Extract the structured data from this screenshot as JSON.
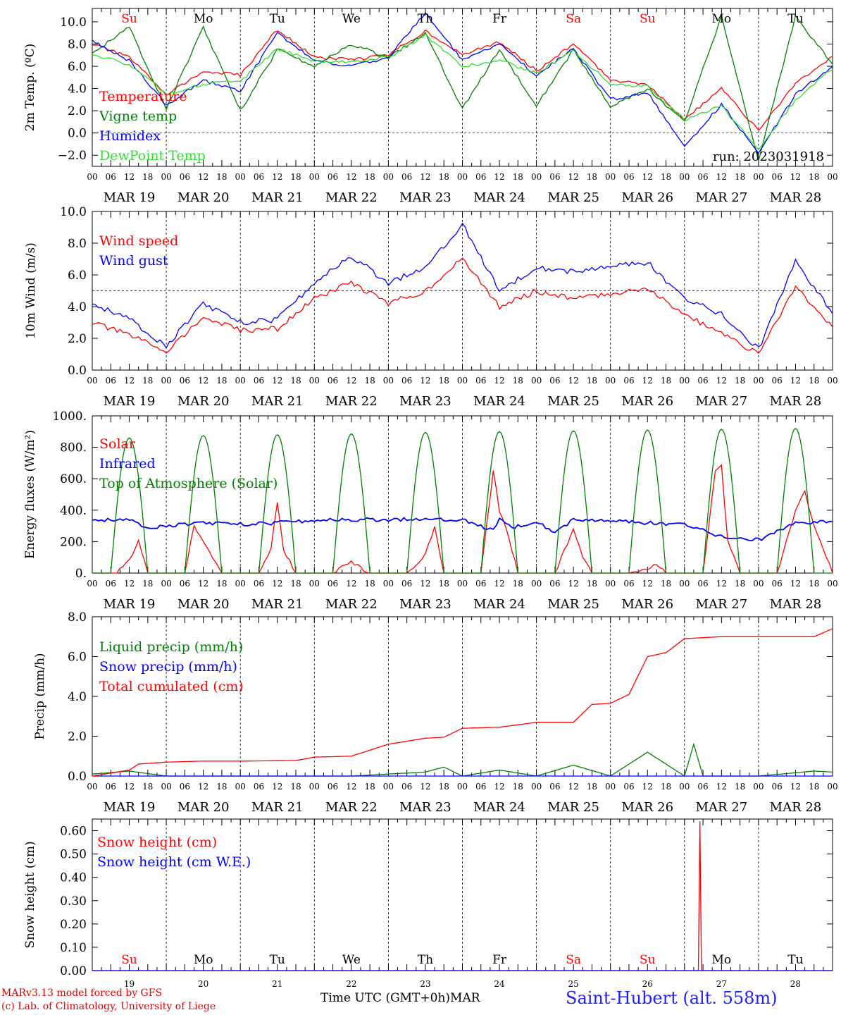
{
  "chart_data": [
    {
      "type": "line",
      "ylabel": "2m Temp. (ºC)",
      "ylim": [
        -3.0,
        11.2
      ],
      "yticks": [
        -2.0,
        0.0,
        2.0,
        4.0,
        6.0,
        8.0,
        10.0
      ],
      "ytick_labels": [
        "−2.0",
        "0.0",
        "2.0",
        "4.0",
        "6.0",
        "8.0",
        "10.0"
      ],
      "ref_line": 0,
      "annotation": "run: 2023031918",
      "legend": [
        "Temperature",
        "Vigne temp",
        "Humidex",
        "DewPoint Temp"
      ],
      "legend_placement": "bottom-left",
      "day_labels": [
        "Su",
        "Mo",
        "Tu",
        "We",
        "Th",
        "Fr",
        "Sa",
        "Su",
        "Mo",
        "Tu"
      ],
      "series": [
        {
          "name": "Temperature",
          "color": "#ff0000",
          "x": [
            0,
            12,
            24,
            36,
            48,
            60,
            72,
            84,
            96,
            108,
            120,
            132,
            144,
            156,
            168,
            180,
            192,
            204,
            216,
            228,
            240
          ],
          "values": [
            8.0,
            6.8,
            3.5,
            5.5,
            5.2,
            9.3,
            6.8,
            6.6,
            7.0,
            9.2,
            7.0,
            8.2,
            5.6,
            8.0,
            4.8,
            4.4,
            1.2,
            4.0,
            0.2,
            4.5,
            6.8
          ]
        },
        {
          "name": "Vigne temp",
          "color": "#008000",
          "x": [
            0,
            12,
            24,
            36,
            48,
            60,
            72,
            84,
            96,
            108,
            120,
            132,
            144,
            156,
            168,
            180,
            192,
            204,
            216,
            228,
            240
          ],
          "values": [
            7.2,
            9.5,
            2.2,
            9.5,
            2.0,
            7.5,
            6.0,
            8.0,
            6.8,
            9.0,
            2.2,
            7.5,
            2.5,
            7.5,
            2.3,
            4.0,
            1.0,
            10.5,
            -2.5,
            10.5,
            6.2
          ]
        },
        {
          "name": "Humidex",
          "color": "#0000ff",
          "x": [
            0,
            12,
            24,
            36,
            48,
            60,
            72,
            84,
            96,
            108,
            120,
            132,
            144,
            156,
            168,
            180,
            192,
            204,
            216,
            228,
            240
          ],
          "values": [
            8.3,
            6.5,
            2.5,
            4.7,
            3.8,
            9.0,
            6.5,
            6.0,
            6.8,
            10.8,
            6.5,
            8.0,
            5.2,
            7.6,
            3.0,
            3.6,
            -1.2,
            2.6,
            -1.8,
            3.5,
            6.0
          ]
        },
        {
          "name": "DewPoint Temp",
          "color": "#33dd33",
          "x": [
            0,
            12,
            24,
            36,
            48,
            60,
            72,
            84,
            96,
            108,
            120,
            132,
            144,
            156,
            168,
            180,
            192,
            204,
            216,
            228,
            240
          ],
          "values": [
            7.0,
            6.2,
            3.5,
            4.4,
            4.6,
            7.6,
            6.5,
            6.4,
            6.8,
            8.8,
            6.0,
            6.5,
            5.4,
            7.4,
            4.4,
            4.2,
            1.2,
            2.4,
            -1.5,
            3.0,
            5.8
          ]
        }
      ]
    },
    {
      "type": "line",
      "ylabel": "10m Wind (m/s)",
      "ylim": [
        0.0,
        10.0
      ],
      "yticks": [
        0.0,
        2.0,
        4.0,
        6.0,
        8.0,
        10.0
      ],
      "ytick_labels": [
        "0.0",
        "2.0",
        "4.0",
        "6.0",
        "8.0",
        "10.0"
      ],
      "ref_line": 5,
      "legend": [
        "Wind speed",
        "Wind gust"
      ],
      "legend_placement": "top-left",
      "series": [
        {
          "name": "Wind speed",
          "color": "#ff0000",
          "x": [
            0,
            12,
            24,
            36,
            48,
            60,
            72,
            84,
            96,
            108,
            120,
            132,
            144,
            156,
            168,
            180,
            192,
            204,
            216,
            228,
            240
          ],
          "values": [
            3.0,
            2.2,
            1.2,
            3.3,
            2.5,
            2.6,
            4.5,
            5.5,
            4.2,
            5.0,
            7.0,
            4.0,
            5.0,
            4.5,
            4.8,
            5.2,
            3.5,
            2.3,
            1.0,
            5.3,
            2.6
          ]
        },
        {
          "name": "Wind gust",
          "color": "#0000ff",
          "x": [
            0,
            12,
            24,
            36,
            48,
            60,
            72,
            84,
            96,
            108,
            120,
            132,
            144,
            156,
            168,
            180,
            192,
            204,
            216,
            228,
            240
          ],
          "values": [
            4.2,
            3.2,
            1.5,
            4.2,
            3.0,
            3.2,
            5.5,
            7.2,
            5.5,
            6.5,
            9.2,
            5.0,
            6.5,
            6.2,
            6.5,
            6.8,
            4.5,
            3.5,
            1.3,
            6.9,
            3.6
          ]
        }
      ]
    },
    {
      "type": "line",
      "ylabel": "Energy fluxes (W/m²)",
      "ylim": [
        0,
        1000
      ],
      "yticks": [
        0,
        200,
        400,
        600,
        800,
        1000
      ],
      "ytick_labels": [
        "0.",
        "200.",
        "400.",
        "600.",
        "800.",
        "1000."
      ],
      "legend": [
        "Solar",
        "Infrared",
        "Top of Atmosphere (Solar)"
      ],
      "legend_placement": "top-left",
      "series": [
        {
          "name": "Solar",
          "color": "#ff0000",
          "x": [
            0,
            8,
            12,
            15,
            18,
            24,
            30,
            33,
            36,
            42,
            48,
            54,
            58,
            60,
            62,
            66,
            72,
            78,
            84,
            90,
            96,
            102,
            108,
            111,
            114,
            120,
            126,
            130,
            132,
            134,
            138,
            144,
            150,
            156,
            159,
            162,
            168,
            174,
            180,
            183,
            186,
            192,
            198,
            202,
            204,
            206,
            210,
            216,
            222,
            228,
            231,
            234,
            240
          ],
          "values": [
            0,
            0,
            80,
            200,
            0,
            0,
            0,
            300,
            200,
            0,
            0,
            0,
            150,
            460,
            150,
            0,
            0,
            0,
            70,
            0,
            0,
            0,
            120,
            300,
            0,
            0,
            0,
            650,
            400,
            300,
            0,
            0,
            0,
            280,
            100,
            0,
            0,
            0,
            30,
            60,
            0,
            0,
            0,
            650,
            680,
            200,
            0,
            0,
            0,
            400,
            520,
            300,
            0
          ]
        },
        {
          "name": "Infrared",
          "color": "#0000ff",
          "x": [
            0,
            12,
            18,
            24,
            36,
            48,
            60,
            72,
            84,
            96,
            108,
            120,
            130,
            132,
            136,
            144,
            150,
            156,
            168,
            180,
            192,
            204,
            216,
            228,
            240
          ],
          "values": [
            340,
            335,
            290,
            300,
            320,
            310,
            320,
            335,
            340,
            340,
            345,
            340,
            270,
            350,
            290,
            330,
            260,
            340,
            330,
            320,
            310,
            230,
            210,
            320,
            330
          ]
        },
        {
          "name": "Top of Atmosphere (Solar)",
          "color": "#008000",
          "peaks": [
            860,
            875,
            880,
            885,
            895,
            900,
            905,
            910,
            915,
            920
          ]
        }
      ]
    },
    {
      "type": "line",
      "ylabel": "Precip (mm/h)",
      "ylim": [
        0.0,
        8.0
      ],
      "yticks": [
        0.0,
        2.0,
        4.0,
        6.0,
        8.0
      ],
      "ytick_labels": [
        "0.0",
        "2.0",
        "4.0",
        "6.0",
        "8.0"
      ],
      "legend": [
        "Liquid precip (mm/h)",
        "Snow precip (mm/h)",
        "Total cumulated (cm)"
      ],
      "legend_placement": "top-left",
      "series": [
        {
          "name": "Liquid precip (mm/h)",
          "color": "#008000",
          "x": [
            0,
            12,
            24,
            84,
            96,
            108,
            114,
            120,
            132,
            144,
            156,
            168,
            180,
            186,
            192,
            195,
            198,
            216,
            234,
            240
          ],
          "values": [
            0.1,
            0.25,
            0.0,
            0.0,
            0.1,
            0.2,
            0.45,
            0.0,
            0.3,
            0.0,
            0.55,
            0.0,
            1.2,
            0.6,
            0.0,
            1.6,
            0.0,
            0.0,
            0.25,
            0.2
          ]
        },
        {
          "name": "Snow precip (mm/h)",
          "color": "#0000ff",
          "x": [
            0,
            240
          ],
          "values": [
            0.0,
            0.0
          ]
        },
        {
          "name": "Total cumulated (cm)",
          "color": "#ff0000",
          "x": [
            0,
            12,
            15,
            24,
            36,
            48,
            66,
            72,
            84,
            96,
            108,
            114,
            120,
            132,
            144,
            156,
            162,
            168,
            174,
            180,
            186,
            192,
            204,
            216,
            228,
            234,
            240
          ],
          "values": [
            0.0,
            0.3,
            0.6,
            0.7,
            0.75,
            0.75,
            0.78,
            0.95,
            1.0,
            1.6,
            1.9,
            1.95,
            2.4,
            2.45,
            2.7,
            2.7,
            3.6,
            3.65,
            4.1,
            6.0,
            6.2,
            6.9,
            7.0,
            7.0,
            7.0,
            7.0,
            7.4
          ]
        }
      ]
    },
    {
      "type": "line",
      "ylabel": "Snow height (cm)",
      "ylim": [
        0.0,
        0.65
      ],
      "yticks": [
        0.0,
        0.1,
        0.2,
        0.3,
        0.4,
        0.5,
        0.6
      ],
      "ytick_labels": [
        "0.00",
        "0.10",
        "0.20",
        "0.30",
        "0.40",
        "0.50",
        "0.60"
      ],
      "legend": [
        "Snow height (cm)",
        "Snow height (cm W.E.)"
      ],
      "legend_placement": "top-left",
      "day_labels": [
        "Su",
        "Mo",
        "Tu",
        "We",
        "Th",
        "Fr",
        "Sa",
        "Su",
        "Mo",
        "Tu"
      ],
      "date_labels": [
        "19",
        "20",
        "21",
        "22",
        "23",
        "24",
        "25",
        "26",
        "27",
        "28"
      ],
      "series": [
        {
          "name": "Snow height (cm)",
          "color": "#ff0000",
          "x": [
            0,
            196.5,
            197,
            197.5,
            240
          ],
          "values": [
            0,
            0,
            0.64,
            0,
            0
          ]
        },
        {
          "name": "Snow height (cm W.E.)",
          "color": "#0000ff",
          "x": [
            0,
            240
          ],
          "values": [
            0,
            0
          ]
        }
      ]
    }
  ],
  "x_axis": {
    "hour_labels": [
      "00",
      "06",
      "12",
      "18"
    ],
    "date_labels": [
      "MAR 19",
      "MAR 20",
      "MAR 21",
      "MAR 22",
      "MAR 23",
      "MAR 24",
      "MAR 25",
      "MAR 26",
      "MAR 27",
      "MAR 28"
    ],
    "xlim_hours": [
      0,
      240
    ],
    "xlabel": "Time UTC (GMT+0h)",
    "month": "MAR"
  },
  "footer": {
    "credit_1": "MARv3.13 model forced by GFS",
    "credit_2": "(c) Lab. of Climatology, University of Liege",
    "station": "Saint-Hubert (alt. 558m)"
  },
  "colors": {
    "red": "#ff0000",
    "green": "#008000",
    "blue": "#0000ff",
    "lightgreen": "#33dd33",
    "station": "#2020ff"
  }
}
